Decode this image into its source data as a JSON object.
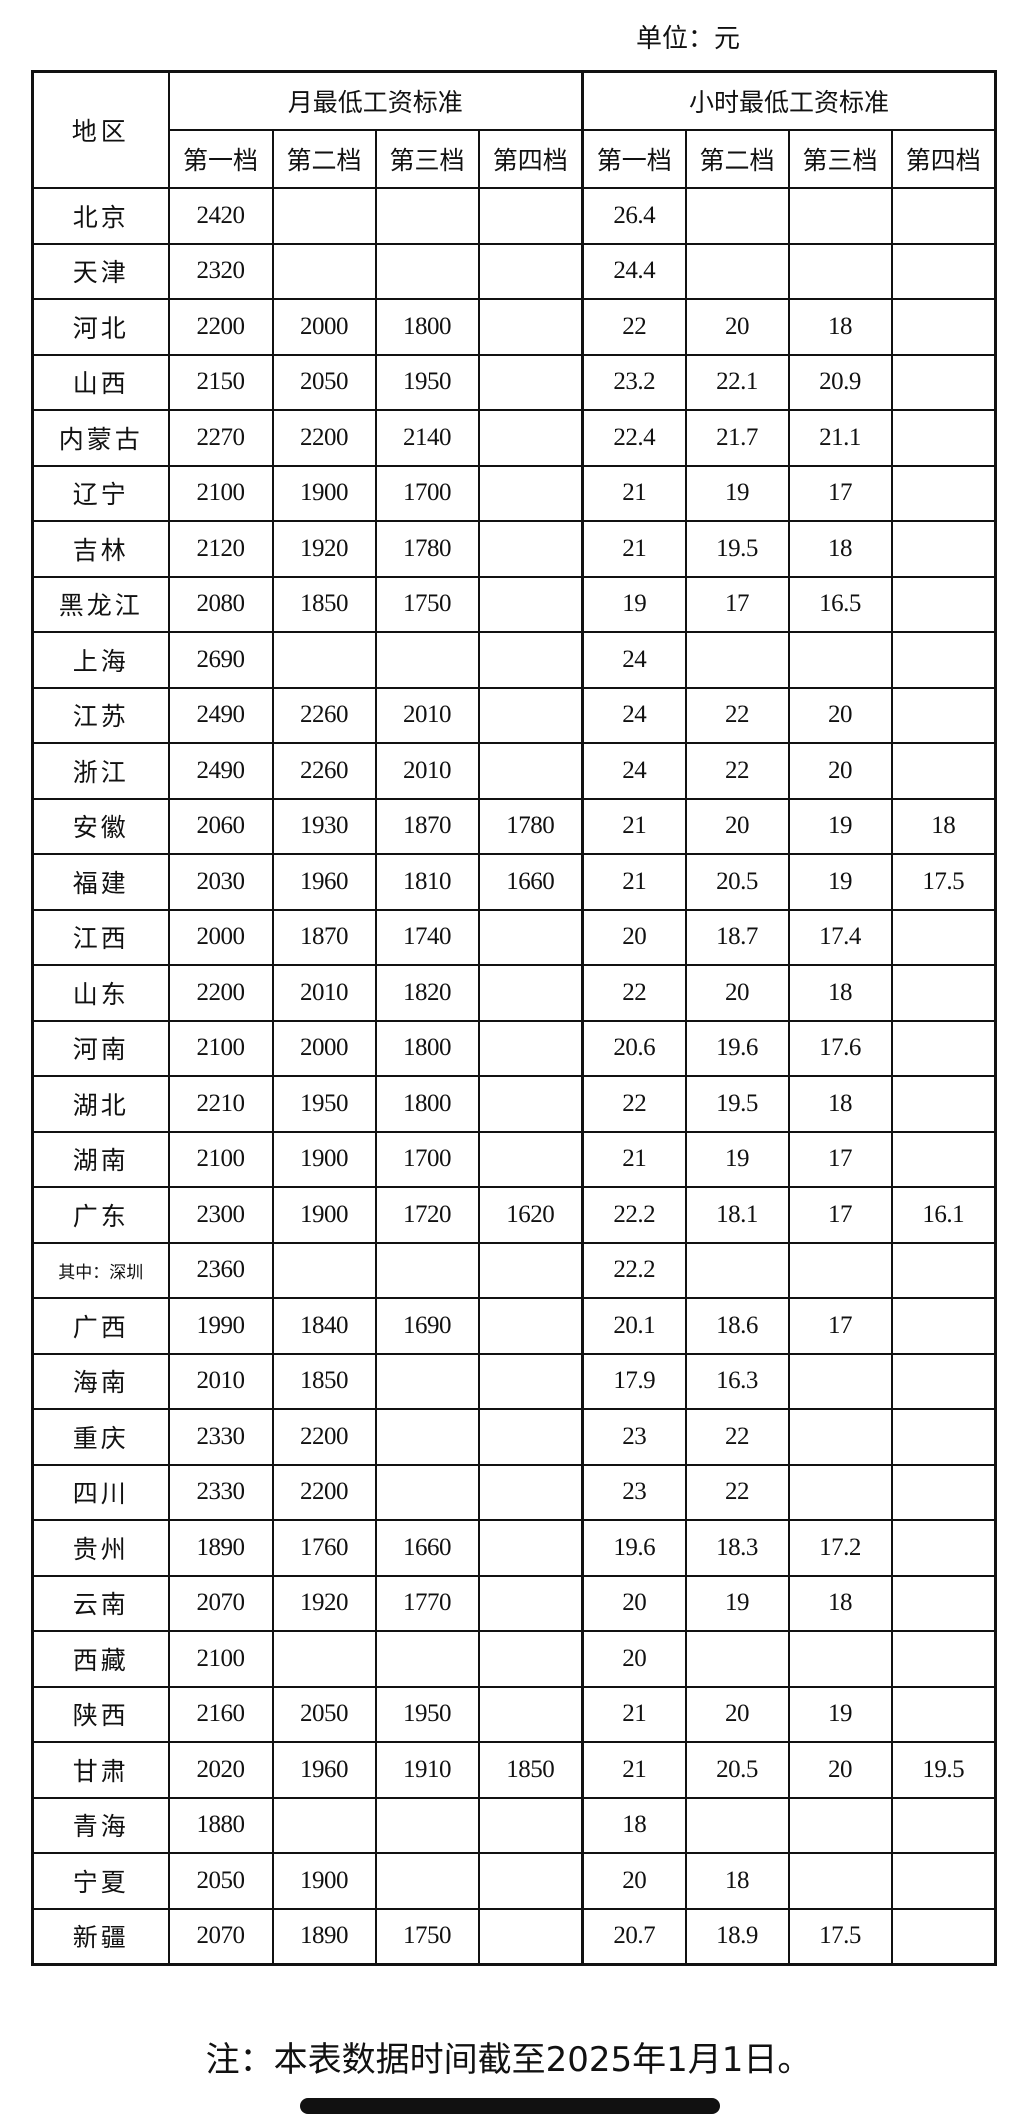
{
  "unit": "单位：元",
  "header": {
    "region": "地区",
    "monthly": "月最低工资标准",
    "hourly": "小时最低工资标准",
    "tiers": [
      "第一档",
      "第二档",
      "第三档",
      "第四档"
    ]
  },
  "rows": [
    {
      "region": "北京",
      "monthly": [
        "2420",
        "",
        "",
        ""
      ],
      "hourly": [
        "26.4",
        "",
        "",
        ""
      ]
    },
    {
      "region": "天津",
      "monthly": [
        "2320",
        "",
        "",
        ""
      ],
      "hourly": [
        "24.4",
        "",
        "",
        ""
      ]
    },
    {
      "region": "河北",
      "monthly": [
        "2200",
        "2000",
        "1800",
        ""
      ],
      "hourly": [
        "22",
        "20",
        "18",
        ""
      ]
    },
    {
      "region": "山西",
      "monthly": [
        "2150",
        "2050",
        "1950",
        ""
      ],
      "hourly": [
        "23.2",
        "22.1",
        "20.9",
        ""
      ]
    },
    {
      "region": "内蒙古",
      "monthly": [
        "2270",
        "2200",
        "2140",
        ""
      ],
      "hourly": [
        "22.4",
        "21.7",
        "21.1",
        ""
      ]
    },
    {
      "region": "辽宁",
      "monthly": [
        "2100",
        "1900",
        "1700",
        ""
      ],
      "hourly": [
        "21",
        "19",
        "17",
        ""
      ]
    },
    {
      "region": "吉林",
      "monthly": [
        "2120",
        "1920",
        "1780",
        ""
      ],
      "hourly": [
        "21",
        "19.5",
        "18",
        ""
      ]
    },
    {
      "region": "黑龙江",
      "monthly": [
        "2080",
        "1850",
        "1750",
        ""
      ],
      "hourly": [
        "19",
        "17",
        "16.5",
        ""
      ]
    },
    {
      "region": "上海",
      "monthly": [
        "2690",
        "",
        "",
        ""
      ],
      "hourly": [
        "24",
        "",
        "",
        ""
      ]
    },
    {
      "region": "江苏",
      "monthly": [
        "2490",
        "2260",
        "2010",
        ""
      ],
      "hourly": [
        "24",
        "22",
        "20",
        ""
      ]
    },
    {
      "region": "浙江",
      "monthly": [
        "2490",
        "2260",
        "2010",
        ""
      ],
      "hourly": [
        "24",
        "22",
        "20",
        ""
      ]
    },
    {
      "region": "安徽",
      "monthly": [
        "2060",
        "1930",
        "1870",
        "1780"
      ],
      "hourly": [
        "21",
        "20",
        "19",
        "18"
      ]
    },
    {
      "region": "福建",
      "monthly": [
        "2030",
        "1960",
        "1810",
        "1660"
      ],
      "hourly": [
        "21",
        "20.5",
        "19",
        "17.5"
      ]
    },
    {
      "region": "江西",
      "monthly": [
        "2000",
        "1870",
        "1740",
        ""
      ],
      "hourly": [
        "20",
        "18.7",
        "17.4",
        ""
      ]
    },
    {
      "region": "山东",
      "monthly": [
        "2200",
        "2010",
        "1820",
        ""
      ],
      "hourly": [
        "22",
        "20",
        "18",
        ""
      ]
    },
    {
      "region": "河南",
      "monthly": [
        "2100",
        "2000",
        "1800",
        ""
      ],
      "hourly": [
        "20.6",
        "19.6",
        "17.6",
        ""
      ]
    },
    {
      "region": "湖北",
      "monthly": [
        "2210",
        "1950",
        "1800",
        ""
      ],
      "hourly": [
        "22",
        "19.5",
        "18",
        ""
      ]
    },
    {
      "region": "湖南",
      "monthly": [
        "2100",
        "1900",
        "1700",
        ""
      ],
      "hourly": [
        "21",
        "19",
        "17",
        ""
      ]
    },
    {
      "region": "广东",
      "monthly": [
        "2300",
        "1900",
        "1720",
        "1620"
      ],
      "hourly": [
        "22.2",
        "18.1",
        "17",
        "16.1"
      ]
    },
    {
      "region": "其中：深圳",
      "monthly": [
        "2360",
        "",
        "",
        ""
      ],
      "hourly": [
        "22.2",
        "",
        "",
        ""
      ]
    },
    {
      "region": "广西",
      "monthly": [
        "1990",
        "1840",
        "1690",
        ""
      ],
      "hourly": [
        "20.1",
        "18.6",
        "17",
        ""
      ]
    },
    {
      "region": "海南",
      "monthly": [
        "2010",
        "1850",
        "",
        ""
      ],
      "hourly": [
        "17.9",
        "16.3",
        "",
        ""
      ]
    },
    {
      "region": "重庆",
      "monthly": [
        "2330",
        "2200",
        "",
        ""
      ],
      "hourly": [
        "23",
        "22",
        "",
        ""
      ]
    },
    {
      "region": "四川",
      "monthly": [
        "2330",
        "2200",
        "",
        ""
      ],
      "hourly": [
        "23",
        "22",
        "",
        ""
      ]
    },
    {
      "region": "贵州",
      "monthly": [
        "1890",
        "1760",
        "1660",
        ""
      ],
      "hourly": [
        "19.6",
        "18.3",
        "17.2",
        ""
      ]
    },
    {
      "region": "云南",
      "monthly": [
        "2070",
        "1920",
        "1770",
        ""
      ],
      "hourly": [
        "20",
        "19",
        "18",
        ""
      ]
    },
    {
      "region": "西藏",
      "monthly": [
        "2100",
        "",
        "",
        ""
      ],
      "hourly": [
        "20",
        "",
        "",
        ""
      ]
    },
    {
      "region": "陕西",
      "monthly": [
        "2160",
        "2050",
        "1950",
        ""
      ],
      "hourly": [
        "21",
        "20",
        "19",
        ""
      ]
    },
    {
      "region": "甘肃",
      "monthly": [
        "2020",
        "1960",
        "1910",
        "1850"
      ],
      "hourly": [
        "21",
        "20.5",
        "20",
        "19.5"
      ]
    },
    {
      "region": "青海",
      "monthly": [
        "1880",
        "",
        "",
        ""
      ],
      "hourly": [
        "18",
        "",
        "",
        ""
      ]
    },
    {
      "region": "宁夏",
      "monthly": [
        "2050",
        "1900",
        "",
        ""
      ],
      "hourly": [
        "20",
        "18",
        "",
        ""
      ]
    },
    {
      "region": "新疆",
      "monthly": [
        "2070",
        "1890",
        "1750",
        ""
      ],
      "hourly": [
        "20.7",
        "18.9",
        "17.5",
        ""
      ]
    }
  ],
  "note": "注：本表数据时间截至2025年1月1日。"
}
